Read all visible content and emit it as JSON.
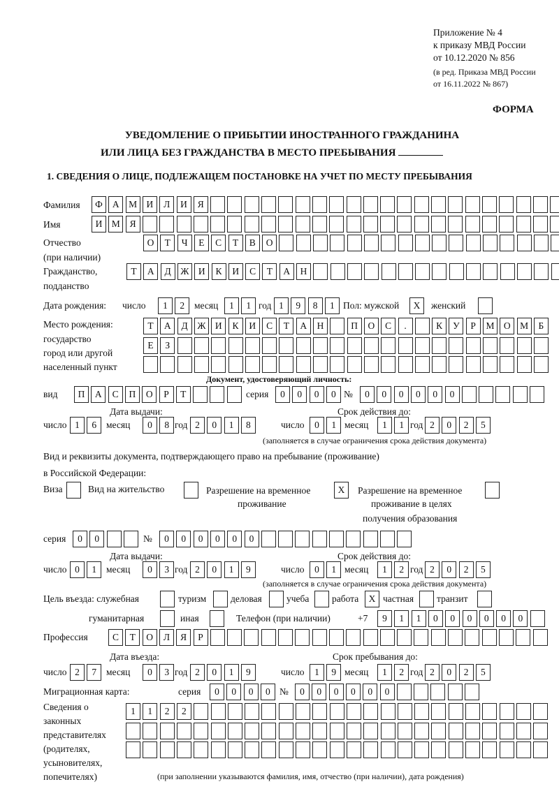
{
  "header": {
    "appendix": "Приложение № 4",
    "order": "к приказу МВД России",
    "order_date": "от 10.12.2020 № 856",
    "edition1": "(в ред. Приказа МВД России",
    "edition2": "от 16.11.2022 № 867)",
    "form": "ФОРМА",
    "title1": "УВЕДОМЛЕНИЕ О ПРИБЫТИИ ИНОСТРАННОГО ГРАЖДАНИНА",
    "title2": "ИЛИ ЛИЦА БЕЗ ГРАЖДАНСТВА В МЕСТО ПРЕБЫВАНИЯ",
    "section1": "1. СВЕДЕНИЯ О ЛИЦЕ, ПОДЛЕЖАЩЕМ ПОСТАНОВКЕ НА УЧЕТ ПО МЕСТУ ПРЕБЫВАНИЯ"
  },
  "labels": {
    "surname": "Фамилия",
    "name": "Имя",
    "patronymic": "Отчество",
    "patronymic2": "(при наличии)",
    "citizenship": "Гражданство,",
    "citizenship2": "подданство",
    "birth_date": "Дата рождения:",
    "day": "число",
    "month": "месяц",
    "year": "год",
    "sex": "Пол: мужской",
    "female": "женский",
    "birth_place1": "Место рождения:",
    "birth_place2": "государство",
    "birth_place3": "город или другой",
    "birth_place4": "населенный пункт",
    "id_doc": "Документ, удостоверяющий личность:",
    "kind": "вид",
    "series": "серия",
    "number": "№",
    "issue_date": "Дата выдачи:",
    "valid_until": "Срок действия до:",
    "valid_note": "(заполняется в случае ограничения срока действия документа)",
    "right_doc1": "Вид и реквизиты документа, подтверждающего право на пребывание (проживание)",
    "right_doc2": "в Российской Федерации:",
    "visa": "Виза",
    "residence": "Вид на жительство",
    "trp1": "Разрешение на временное",
    "trp2": "проживание",
    "trp_edu1": "Разрешение на временное",
    "trp_edu2": "проживание в целях",
    "trp_edu3": "получения образования",
    "purpose": "Цель въезда: служебная",
    "tourism": "туризм",
    "business": "деловая",
    "study": "учеба",
    "work": "работа",
    "private": "частная",
    "transit": "транзит",
    "humanitarian": "гуманитарная",
    "other": "иная",
    "phone": "Телефон (при наличии)",
    "phone_prefix": "+7",
    "profession": "Профессия",
    "entry_date": "Дата въезда:",
    "stay_until": "Срок пребывания до:",
    "migration_card": "Миграционная карта:",
    "reps1": "Сведения о",
    "reps2": "законных",
    "reps3": "представителях",
    "reps4": "(родителях,",
    "reps5": "усыновителях,",
    "reps6": "попечителях)",
    "reps_note": "(при заполнении указываются фамилия, имя, отчество (при наличии), дата рождения)"
  },
  "values": {
    "surname": [
      "Ф",
      "А",
      "М",
      "И",
      "Л",
      "И",
      "Я",
      "",
      "",
      "",
      "",
      "",
      "",
      "",
      "",
      "",
      "",
      "",
      "",
      "",
      "",
      "",
      "",
      "",
      "",
      "",
      "",
      ""
    ],
    "name": [
      "И",
      "М",
      "Я",
      "",
      "",
      "",
      "",
      "",
      "",
      "",
      "",
      "",
      "",
      "",
      "",
      "",
      "",
      "",
      "",
      "",
      "",
      "",
      "",
      "",
      "",
      "",
      "",
      "",
      ""
    ],
    "patronymic": [
      "О",
      "Т",
      "Ч",
      "Е",
      "С",
      "Т",
      "В",
      "О",
      "",
      "",
      "",
      "",
      "",
      "",
      "",
      "",
      "",
      "",
      "",
      "",
      "",
      "",
      "",
      "",
      ""
    ],
    "citizenship": [
      "Т",
      "А",
      "Д",
      "Ж",
      "И",
      "К",
      "И",
      "С",
      "Т",
      "А",
      "Н",
      "",
      "",
      "",
      "",
      "",
      "",
      "",
      "",
      "",
      "",
      "",
      "",
      "",
      "",
      ""
    ],
    "birth_day": [
      "1",
      "2"
    ],
    "birth_month": [
      "1",
      "1"
    ],
    "birth_year": [
      "1",
      "9",
      "8",
      "1"
    ],
    "sex_male": [
      "X"
    ],
    "sex_female": [
      ""
    ],
    "birth_place1": [
      "Т",
      "А",
      "Д",
      "Ж",
      "И",
      "К",
      "И",
      "С",
      "Т",
      "А",
      "Н",
      "",
      "П",
      "О",
      "С",
      ".",
      "",
      "К",
      "У",
      "Р",
      "М",
      "О",
      "М",
      "Б"
    ],
    "birth_place2": [
      "Е",
      "З",
      "",
      "",
      "",
      "",
      "",
      "",
      "",
      "",
      "",
      "",
      "",
      "",
      "",
      "",
      "",
      "",
      "",
      "",
      "",
      "",
      "",
      ""
    ],
    "birth_place3": [
      "",
      "",
      "",
      "",
      "",
      "",
      "",
      "",
      "",
      "",
      "",
      "",
      "",
      "",
      "",
      "",
      "",
      "",
      "",
      "",
      "",
      "",
      "",
      ""
    ],
    "doc_kind": [
      "П",
      "А",
      "С",
      "П",
      "О",
      "Р",
      "Т",
      "",
      "",
      ""
    ],
    "doc_series": [
      "0",
      "0",
      "0",
      "0"
    ],
    "doc_number": [
      "0",
      "0",
      "0",
      "0",
      "0",
      "0",
      "",
      "",
      "",
      "",
      ""
    ],
    "doc_issue_day": [
      "1",
      "6"
    ],
    "doc_issue_month": [
      "0",
      "8"
    ],
    "doc_issue_year": [
      "2",
      "0",
      "1",
      "8"
    ],
    "doc_valid_day": [
      "0",
      "1"
    ],
    "doc_valid_month": [
      "1",
      "1"
    ],
    "doc_valid_year": [
      "2",
      "0",
      "2",
      "5"
    ],
    "visa": [
      ""
    ],
    "residence": [
      ""
    ],
    "trp": [
      "X"
    ],
    "trp_edu": [
      ""
    ],
    "right_series": [
      "0",
      "0",
      "",
      ""
    ],
    "right_number": [
      "0",
      "0",
      "0",
      "0",
      "0",
      "0",
      "",
      "",
      "",
      "",
      "",
      "",
      "",
      "",
      ""
    ],
    "right_issue_day": [
      "0",
      "1"
    ],
    "right_issue_month": [
      "0",
      "3"
    ],
    "right_issue_year": [
      "2",
      "0",
      "1",
      "9"
    ],
    "right_valid_day": [
      "0",
      "1"
    ],
    "right_valid_month": [
      "1",
      "2"
    ],
    "right_valid_year": [
      "2",
      "0",
      "2",
      "5"
    ],
    "p_service": [
      ""
    ],
    "p_tourism": [
      ""
    ],
    "p_business": [
      ""
    ],
    "p_study": [
      ""
    ],
    "p_work": [
      "X"
    ],
    "p_private": [
      ""
    ],
    "p_transit": [
      ""
    ],
    "p_humanitarian": [
      ""
    ],
    "p_other": [
      ""
    ],
    "phone": [
      "9",
      "1",
      "1",
      "0",
      "0",
      "0",
      "0",
      "0",
      "0",
      ""
    ],
    "profession": [
      "С",
      "Т",
      "О",
      "Л",
      "Я",
      "Р",
      "",
      "",
      "",
      "",
      "",
      "",
      "",
      "",
      "",
      "",
      "",
      "",
      "",
      "",
      "",
      "",
      "",
      "",
      "",
      ""
    ],
    "entry_day": [
      "2",
      "7"
    ],
    "entry_month": [
      "0",
      "3"
    ],
    "entry_year": [
      "2",
      "0",
      "1",
      "9"
    ],
    "stay_day": [
      "1",
      "9"
    ],
    "stay_month": [
      "1",
      "2"
    ],
    "stay_year": [
      "2",
      "0",
      "2",
      "5"
    ],
    "mc_series": [
      "0",
      "0",
      "0",
      "0"
    ],
    "mc_number": [
      "0",
      "0",
      "0",
      "0",
      "0",
      "0",
      "",
      "",
      "",
      "",
      ""
    ],
    "reps1": [
      "1",
      "1",
      "2",
      "2",
      "",
      "",
      "",
      "",
      "",
      "",
      "",
      "",
      "",
      "",
      "",
      "",
      "",
      "",
      "",
      "",
      "",
      "",
      "",
      "",
      ""
    ],
    "reps2": [
      "",
      "",
      "",
      "",
      "",
      "",
      "",
      "",
      "",
      "",
      "",
      "",
      "",
      "",
      "",
      "",
      "",
      "",
      "",
      "",
      "",
      "",
      "",
      "",
      ""
    ],
    "reps3": [
      "",
      "",
      "",
      "",
      "",
      "",
      "",
      "",
      "",
      "",
      "",
      "",
      "",
      "",
      "",
      "",
      "",
      "",
      "",
      "",
      "",
      "",
      "",
      "",
      ""
    ]
  }
}
